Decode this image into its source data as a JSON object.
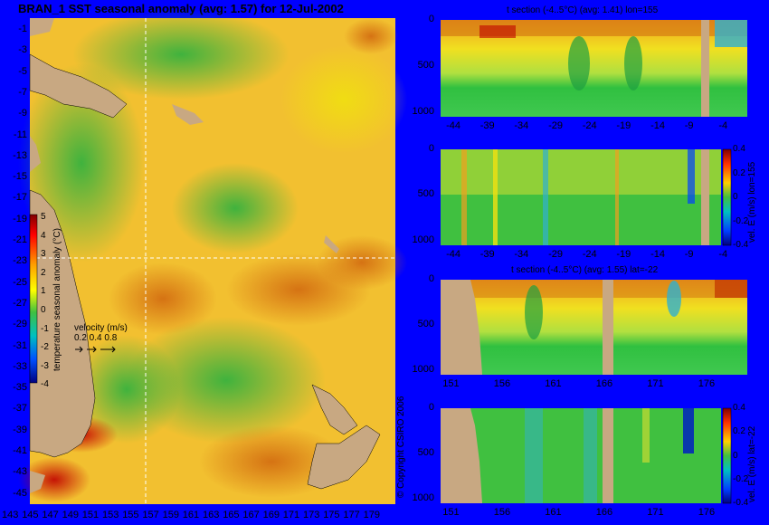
{
  "colors": {
    "background": "#0000ff",
    "land": "#c8a882",
    "gridline": "#ffffff"
  },
  "map": {
    "title": "BRAN_1 SST seasonal anomaly (avg: 1.57) for 12-Jul-2002",
    "ylabels": [
      "-1",
      "-3",
      "-5",
      "-7",
      "-9",
      "-11",
      "-13",
      "-15",
      "-17",
      "-19",
      "-21",
      "-23",
      "-25",
      "-27",
      "-29",
      "-31",
      "-33",
      "-35",
      "-37",
      "-39",
      "-41",
      "-43",
      "-45"
    ],
    "xlabels": [
      "143",
      "145",
      "147",
      "149",
      "151",
      "153",
      "155",
      "157",
      "159",
      "161",
      "163",
      "165",
      "167",
      "169",
      "171",
      "173",
      "175",
      "177",
      "179"
    ],
    "colorbar": {
      "label": "temperature seasonal anomaly (°C)",
      "ticks": [
        "5",
        "4",
        "3",
        "2",
        "1",
        "0",
        "-1",
        "-2",
        "-3",
        "-4"
      ]
    },
    "velocity": {
      "label": "velocity (m/s)",
      "scale": "0.2 0.4 0.8",
      "arrows": "> > >"
    },
    "copyright": "© Copyright CSIRO 2006"
  },
  "panels": {
    "p1": {
      "title": "t section (-4..5°C) (avg: 1.41) lon=155",
      "yticks": [
        "0",
        "500",
        "1000"
      ],
      "xticks": [
        "-44",
        "-39",
        "-34",
        "-29",
        "-24",
        "-19",
        "-14",
        "-9",
        "-4"
      ]
    },
    "p2": {
      "yticks": [
        "0",
        "500",
        "1000"
      ],
      "xticks": [
        "-44",
        "-39",
        "-34",
        "-29",
        "-24",
        "-19",
        "-14",
        "-9",
        "-4"
      ],
      "colorbar_label": "vel. E (m/s) lon=155",
      "colorbar_ticks": [
        "0.4",
        "0.2",
        "0",
        "-0.2",
        "-0.4"
      ]
    },
    "p3": {
      "title": "t section (-4..5°C) (avg: 1.55) lat=-22",
      "yticks": [
        "0",
        "500",
        "1000"
      ],
      "xticks": [
        "151",
        "156",
        "161",
        "166",
        "171",
        "176"
      ]
    },
    "p4": {
      "yticks": [
        "0",
        "500",
        "1000"
      ],
      "xticks": [
        "151",
        "156",
        "161",
        "166",
        "171",
        "176"
      ],
      "colorbar_label": "vel. E (m/s) lat=-22",
      "colorbar_ticks": [
        "0.4",
        "0.2",
        "0",
        "-0.2",
        "-0.4"
      ]
    }
  },
  "chart_data": [
    {
      "type": "heatmap",
      "title": "BRAN_1 SST seasonal anomaly (avg: 1.57) for 12-Jul-2002",
      "variable": "temperature seasonal anomaly (°C)",
      "avg": 1.57,
      "date": "12-Jul-2002",
      "xlim": [
        143,
        180
      ],
      "ylim": [
        -45,
        0
      ],
      "colorbar_range": [
        -4,
        5
      ],
      "section_lines": {
        "lon": 155,
        "lat": -22
      }
    },
    {
      "type": "heatmap",
      "title": "t section (-4..5°C) (avg: 1.41) lon=155",
      "avg": 1.41,
      "x_range": [
        -46,
        -1
      ],
      "depth_range": [
        0,
        1050
      ],
      "colorbar_range": [
        -4,
        5
      ]
    },
    {
      "type": "heatmap",
      "variable": "vel. E (m/s) lon=155",
      "x_range": [
        -46,
        -1
      ],
      "depth_range": [
        0,
        1050
      ],
      "colorbar_range": [
        -0.4,
        0.4
      ]
    },
    {
      "type": "heatmap",
      "title": "t section (-4..5°C) (avg: 1.55) lat=-22",
      "avg": 1.55,
      "x_range": [
        150,
        180
      ],
      "depth_range": [
        0,
        1050
      ],
      "colorbar_range": [
        -4,
        5
      ]
    },
    {
      "type": "heatmap",
      "variable": "vel. E (m/s) lat=-22",
      "x_range": [
        150,
        180
      ],
      "depth_range": [
        0,
        1050
      ],
      "colorbar_range": [
        -0.4,
        0.4
      ]
    }
  ]
}
